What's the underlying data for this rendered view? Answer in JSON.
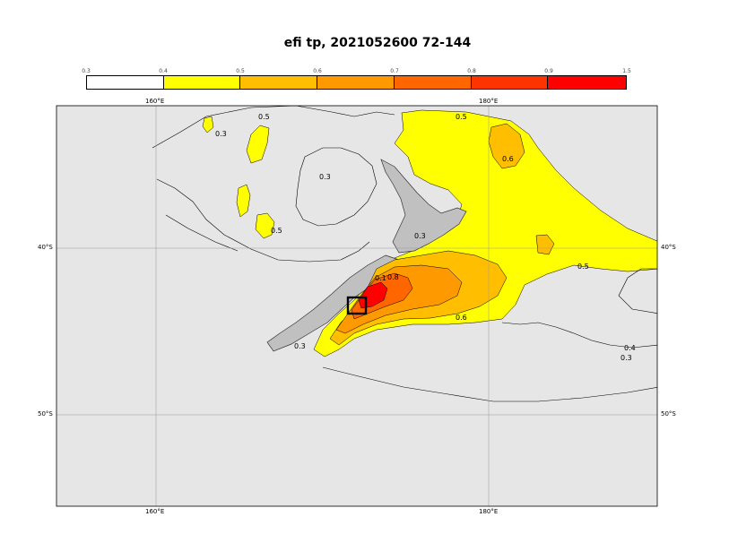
{
  "title": "efi tp, 2021052600 72-144",
  "legend": {
    "ticks": [
      "0.3",
      "0.4",
      "0.5",
      "0.6",
      "0.7",
      "0.8",
      "0.9",
      "1.5"
    ],
    "colors": [
      "#ffffff",
      "#ffffff",
      "#ffff00",
      "#ffbf00",
      "#ff9900",
      "#ff6600",
      "#ff3300",
      "#ff0000"
    ]
  },
  "axes": {
    "lon_labels": [
      "160°E",
      "180°E"
    ],
    "lat_labels": [
      "40°S",
      "50°S"
    ]
  },
  "contour_labels": [
    "0.5",
    "0.3",
    "0.3",
    "0.6",
    "0.3",
    "0.5",
    "0.5",
    "0.1",
    "0.8",
    "0.6",
    "0.3",
    "0.5",
    "0.4",
    "0.3"
  ],
  "map_colors": {
    "background": "#e6e6e6",
    "land": "#c0c0c0",
    "yellow": "#ffff00",
    "orange_light": "#ffbf00",
    "orange": "#ff9900",
    "orange_dark": "#ff6600",
    "red": "#ff0000"
  }
}
